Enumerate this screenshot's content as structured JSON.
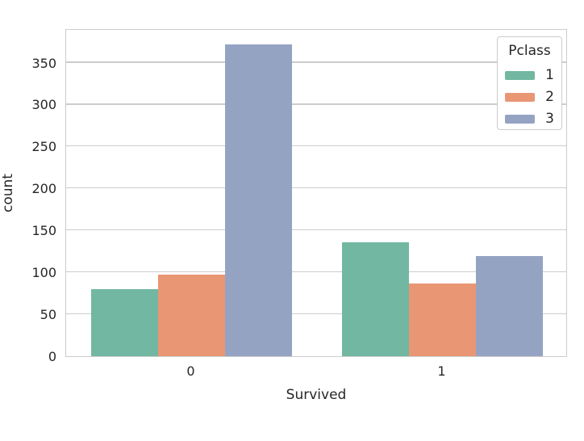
{
  "chart_data": {
    "type": "bar",
    "title": "",
    "xlabel": "Survived",
    "ylabel": "count",
    "categories": [
      "0",
      "1"
    ],
    "series": [
      {
        "name": "1",
        "color": "#71b7a1",
        "values": [
          80,
          136
        ]
      },
      {
        "name": "2",
        "color": "#e99675",
        "values": [
          97,
          87
        ]
      },
      {
        "name": "3",
        "color": "#95a3c3",
        "values": [
          372,
          119
        ]
      }
    ],
    "legend": {
      "title": "Pclass",
      "position": "upper-right"
    },
    "ylim": [
      0,
      391
    ],
    "yticks": [
      0,
      50,
      100,
      150,
      200,
      250,
      300,
      350
    ],
    "grid": true,
    "colors": {
      "grid": "#cccccc",
      "spine": "#cccccc",
      "text": "#262626",
      "background": "#ffffff"
    }
  }
}
